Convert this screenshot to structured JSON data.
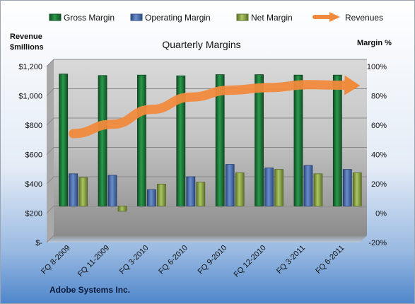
{
  "chart_data": {
    "type": "bar",
    "title": "Quarterly Margins",
    "company": "Adobe Systems Inc.",
    "categories": [
      "FQ 8-2009",
      "FQ 11-2009",
      "FQ 3-2010",
      "FQ 6-2010",
      "FQ 9-2010",
      "FQ 12-2010",
      "FQ 3-2011",
      "FQ 6-2011"
    ],
    "series": [
      {
        "name": "Gross Margin",
        "kind": "bar",
        "axis": "right",
        "color": "#1f7a3c",
        "values": [
          90.0,
          89.0,
          89.3,
          88.8,
          89.6,
          89.6,
          89.3,
          89.3
        ]
      },
      {
        "name": "Operating Margin",
        "kind": "bar",
        "axis": "right",
        "color": "#4a6fb0",
        "values": [
          22.0,
          21.0,
          11.2,
          20.0,
          28.4,
          26.0,
          27.7,
          25.0
        ]
      },
      {
        "name": "Net Margin",
        "kind": "bar",
        "axis": "right",
        "color": "#8faa45",
        "values": [
          19.5,
          -3.5,
          15.0,
          16.3,
          22.7,
          25.0,
          22.0,
          22.7
        ]
      },
      {
        "name": "Revenues",
        "kind": "line",
        "axis": "left",
        "color": "#f08a3c",
        "values": [
          694,
          758,
          859,
          943,
          990,
          1008,
          1028,
          1023
        ]
      }
    ],
    "left_axis": {
      "label_line1": "Revenue",
      "label_line2": "$millions",
      "ticks": [
        "$-",
        "$200",
        "$400",
        "$600",
        "$800",
        "$1,000",
        "$1,200"
      ],
      "range": [
        0,
        1200
      ]
    },
    "right_axis": {
      "label": "Margin %",
      "ticks": [
        "-20%",
        "0%",
        "20%",
        "40%",
        "60%",
        "80%",
        "100%"
      ],
      "range": [
        -20,
        100
      ]
    },
    "grid": true,
    "legend_placement": "top"
  }
}
